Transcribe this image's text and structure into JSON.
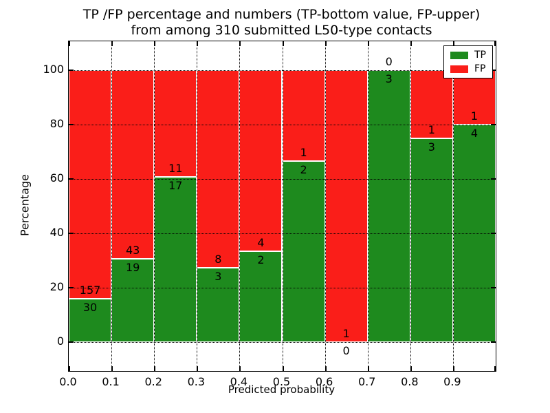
{
  "title": {
    "line1": "TP /FP percentage and numbers (TP-bottom value, FP-upper)",
    "line2": "from among 310 submitted L50-type contacts"
  },
  "axes": {
    "xlabel": "Predicted probability",
    "ylabel": "Percentage"
  },
  "legend": {
    "position": "upper right",
    "items": [
      {
        "label": "TP",
        "color": "#1e8a1e"
      },
      {
        "label": "FP",
        "color": "#fa1e19"
      }
    ]
  },
  "chart_data": {
    "type": "bar",
    "stacked": true,
    "normalized": "each 0.1 bin stacked to 100%",
    "total_contacts": 310,
    "title": "TP /FP percentage and numbers (TP-bottom value, FP-upper) from among 310 submitted L50-type contacts",
    "xlabel": "Predicted probability",
    "ylabel": "Percentage",
    "bin_width": 0.1,
    "bin_starts": [
      0.0,
      0.1,
      0.2,
      0.3,
      0.4,
      0.5,
      0.6,
      0.7,
      0.8,
      0.9
    ],
    "series": [
      {
        "name": "TP",
        "color": "#1e8a1e",
        "counts": [
          30,
          19,
          17,
          3,
          2,
          2,
          0,
          3,
          3,
          4
        ]
      },
      {
        "name": "FP",
        "color": "#fa1e19",
        "counts": [
          157,
          43,
          11,
          8,
          4,
          1,
          1,
          0,
          1,
          1
        ]
      }
    ],
    "tp_percent": [
      16.0,
      30.6,
      60.7,
      27.3,
      33.3,
      66.7,
      0.0,
      100.0,
      75.0,
      80.0
    ],
    "xlim": [
      0.0,
      1.0
    ],
    "ylim": [
      -10.5,
      110.5
    ],
    "x_tick_labels": [
      "0.0",
      "0.1",
      "0.2",
      "0.3",
      "0.4",
      "0.5",
      "0.6",
      "0.7",
      "0.8",
      "0.9"
    ],
    "y_ticks": [
      0,
      20,
      40,
      60,
      80,
      100
    ],
    "grid": true,
    "grid_style": "dotted",
    "legend_position": "upper right"
  }
}
